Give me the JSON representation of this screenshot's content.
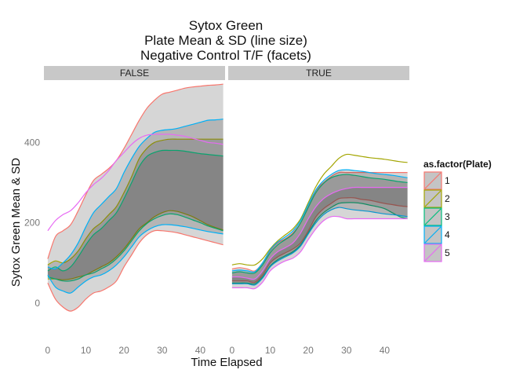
{
  "chart_data": {
    "type": "area",
    "title_lines": [
      "Sytox Green",
      "Plate Mean & SD (line size)",
      "Negative Control T/F (facets)"
    ],
    "xlabel": "Time Elapsed",
    "ylabel": "Sytox Green Mean & SD",
    "xlim": [
      -1,
      46.5
    ],
    "ylim": [
      -100,
      555
    ],
    "xticks": [
      0,
      10,
      20,
      30,
      40
    ],
    "yticks": [
      0,
      200,
      400
    ],
    "grid": false,
    "legend": {
      "title": "as.factor(Plate)",
      "placement": "right",
      "items": [
        "1",
        "2",
        "3",
        "4",
        "5"
      ]
    },
    "colors": {
      "1": "#f8766d",
      "2": "#a3a500",
      "3": "#00bf7d",
      "4": "#00b0f6",
      "5": "#e76bf3",
      "band_fill": "#333333",
      "strip_bg": "#c8c8c8"
    },
    "x": [
      0,
      2,
      4,
      6,
      8,
      10,
      12,
      14,
      16,
      18,
      20,
      22,
      24,
      26,
      28,
      30,
      32,
      34,
      36,
      38,
      40,
      42,
      44,
      46
    ],
    "facets": [
      {
        "strip": "FALSE",
        "series": [
          {
            "name": "1",
            "upper": [
              110,
              165,
              180,
              195,
              230,
              270,
              305,
              320,
              335,
              355,
              385,
              420,
              455,
              485,
              505,
              520,
              525,
              530,
              535,
              538,
              540,
              542,
              543,
              545
            ],
            "lower": [
              50,
              10,
              -10,
              -20,
              -10,
              10,
              25,
              30,
              40,
              55,
              90,
              120,
              150,
              170,
              180,
              180,
              178,
              175,
              170,
              165,
              160,
              155,
              150,
              145
            ]
          },
          {
            "name": "2",
            "upper": [
              95,
              105,
              100,
              110,
              130,
              160,
              185,
              200,
              220,
              240,
              275,
              315,
              360,
              385,
              400,
              405,
              408,
              408,
              408,
              408,
              408,
              408,
              408,
              408
            ],
            "lower": [
              60,
              60,
              58,
              60,
              65,
              70,
              80,
              90,
              100,
              115,
              135,
              160,
              185,
              200,
              215,
              225,
              230,
              228,
              222,
              215,
              205,
              195,
              188,
              182
            ]
          },
          {
            "name": "3",
            "upper": [
              80,
              90,
              80,
              90,
              115,
              145,
              170,
              185,
              205,
              225,
              260,
              300,
              340,
              365,
              375,
              380,
              380,
              380,
              378,
              375,
              372,
              370,
              368,
              366
            ],
            "lower": [
              65,
              60,
              55,
              55,
              60,
              70,
              75,
              85,
              95,
              110,
              130,
              155,
              180,
              198,
              210,
              218,
              222,
              220,
              214,
              207,
              200,
              192,
              186,
              180
            ]
          },
          {
            "name": "4",
            "upper": [
              90,
              85,
              100,
              120,
              150,
              190,
              225,
              245,
              265,
              285,
              325,
              360,
              390,
              410,
              425,
              430,
              432,
              435,
              440,
              445,
              450,
              455,
              456,
              458
            ],
            "lower": [
              70,
              40,
              30,
              25,
              40,
              55,
              65,
              70,
              80,
              95,
              115,
              140,
              165,
              180,
              190,
              195,
              195,
              193,
              190,
              186,
              182,
              178,
              175,
              172
            ]
          },
          {
            "name": "5",
            "upper": [
              180,
              205,
              220,
              230,
              250,
              275,
              295,
              310,
              330,
              355,
              375,
              395,
              410,
              418,
              420,
              420,
              420,
              418,
              415,
              410,
              405,
              400,
              398,
              395
            ]
          }
        ]
      },
      {
        "strip": "TRUE",
        "series": [
          {
            "name": "1",
            "upper": [
              85,
              88,
              85,
              80,
              100,
              130,
              150,
              160,
              175,
              200,
              240,
              280,
              300,
              315,
              325,
              325,
              325,
              325,
              325,
              325,
              325,
              325,
              325,
              325
            ],
            "lower": [
              55,
              55,
              55,
              52,
              70,
              100,
              115,
              125,
              135,
              150,
              180,
              215,
              235,
              248,
              260,
              262,
              262,
              258,
              256,
              252,
              248,
              245,
              242,
              240
            ]
          },
          {
            "name": "2",
            "upper": [
              95,
              98,
              95,
              95,
              110,
              135,
              155,
              170,
              185,
              210,
              250,
              290,
              320,
              340,
              360,
              370,
              368,
              365,
              362,
              360,
              358,
              355,
              352,
              350
            ]
          },
          {
            "name": "3",
            "upper": [
              75,
              78,
              75,
              75,
              95,
              125,
              145,
              158,
              172,
              200,
              238,
              275,
              298,
              312,
              318,
              320,
              318,
              315,
              312,
              310,
              308,
              305,
              302,
              300
            ],
            "lower": [
              50,
              50,
              50,
              48,
              65,
              92,
              108,
              118,
              128,
              145,
              175,
              205,
              225,
              238,
              248,
              250,
              250,
              248,
              244,
              240,
              235,
              225,
              215,
              210
            ]
          },
          {
            "name": "4",
            "upper": [
              80,
              82,
              80,
              78,
              100,
              132,
              152,
              165,
              180,
              206,
              245,
              282,
              305,
              320,
              330,
              332,
              330,
              328,
              325,
              322,
              320,
              318,
              315,
              312
            ],
            "lower": [
              48,
              48,
              48,
              45,
              62,
              90,
              105,
              115,
              125,
              142,
              172,
              200,
              220,
              232,
              238,
              235,
              232,
              230,
              228,
              225,
              222,
              220,
              218,
              215
            ]
          },
          {
            "name": "5",
            "upper": [
              65,
              65,
              62,
              60,
              80,
              110,
              128,
              138,
              150,
              175,
              210,
              240,
              260,
              272,
              280,
              285,
              288,
              288,
              288,
              288,
              288,
              288,
              288,
              288
            ],
            "lower": [
              38,
              38,
              38,
              36,
              52,
              80,
              95,
              105,
              112,
              128,
              158,
              185,
              205,
              215,
              215,
              210,
              210,
              210,
              210,
              210,
              210,
              210,
              210,
              210
            ]
          }
        ]
      }
    ]
  }
}
